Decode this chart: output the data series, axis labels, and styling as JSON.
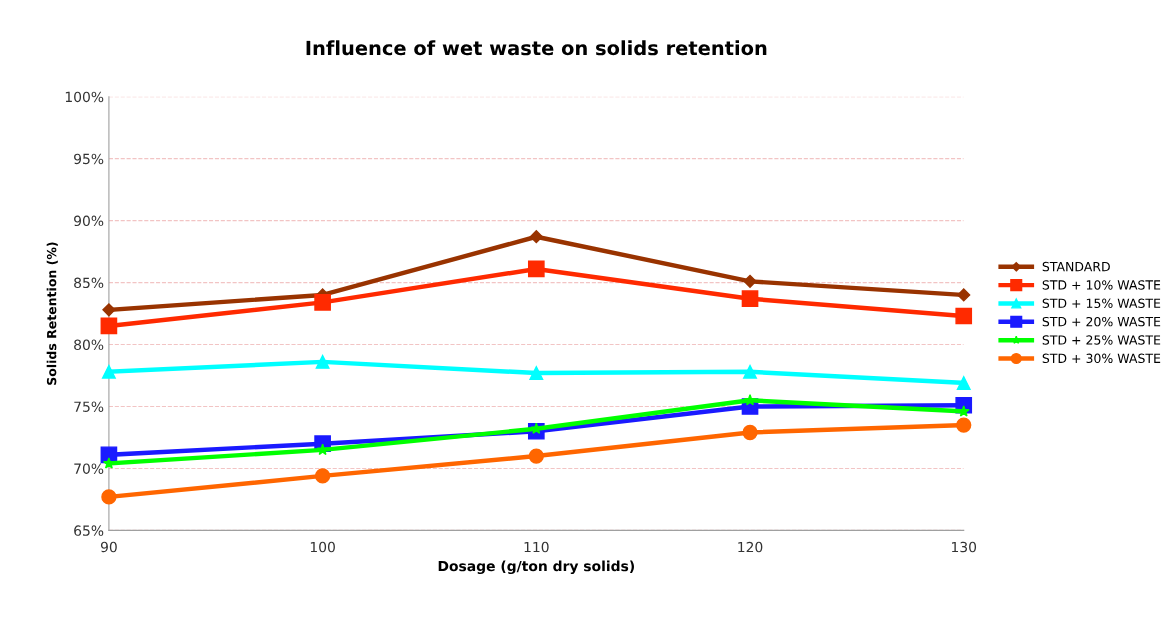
{
  "chart_data": {
    "type": "line",
    "title": "Influence of wet waste on solids retention",
    "xlabel": "Dosage (g/ton dry solids)",
    "ylabel": "Solids Retention (%)",
    "x": [
      90,
      100,
      110,
      120,
      130
    ],
    "series": [
      {
        "name": "STANDARD",
        "color": "#993300",
        "marker": "diamond",
        "values": [
          82.8,
          84.0,
          88.7,
          85.1,
          84.0
        ]
      },
      {
        "name": "STD + 10% WASTE",
        "color": "#ff2a00",
        "marker": "square",
        "values": [
          81.5,
          83.4,
          86.1,
          83.7,
          82.3
        ]
      },
      {
        "name": "STD + 15% WASTE",
        "color": "#00ffff",
        "marker": "triangle",
        "values": [
          77.8,
          78.6,
          77.7,
          77.8,
          76.9
        ]
      },
      {
        "name": "STD + 20% WASTE",
        "color": "#1a1aff",
        "marker": "square",
        "values": [
          71.1,
          72.0,
          73.0,
          75.0,
          75.1
        ]
      },
      {
        "name": "STD + 25% WASTE",
        "color": "#00ff00",
        "marker": "star",
        "values": [
          70.4,
          71.5,
          73.2,
          75.5,
          74.6
        ]
      },
      {
        "name": "STD + 30% WASTE",
        "color": "#ff6600",
        "marker": "circle",
        "values": [
          67.7,
          69.4,
          71.0,
          72.9,
          73.5
        ]
      }
    ],
    "xlim": [
      90,
      130
    ],
    "xticks": [
      90,
      100,
      110,
      120,
      130
    ],
    "ylim": [
      65,
      100
    ],
    "yticks": [
      {
        "value": 65,
        "label": "65%"
      },
      {
        "value": 70,
        "label": "70%"
      },
      {
        "value": 75,
        "label": "75%"
      },
      {
        "value": 80,
        "label": "80%"
      },
      {
        "value": 85,
        "label": "85%"
      },
      {
        "value": 90,
        "label": "90%"
      },
      {
        "value": 95,
        "label": "95%"
      },
      {
        "value": 100,
        "label": "100%"
      }
    ],
    "grid": "y",
    "legend": "right",
    "line_style": "solid"
  }
}
